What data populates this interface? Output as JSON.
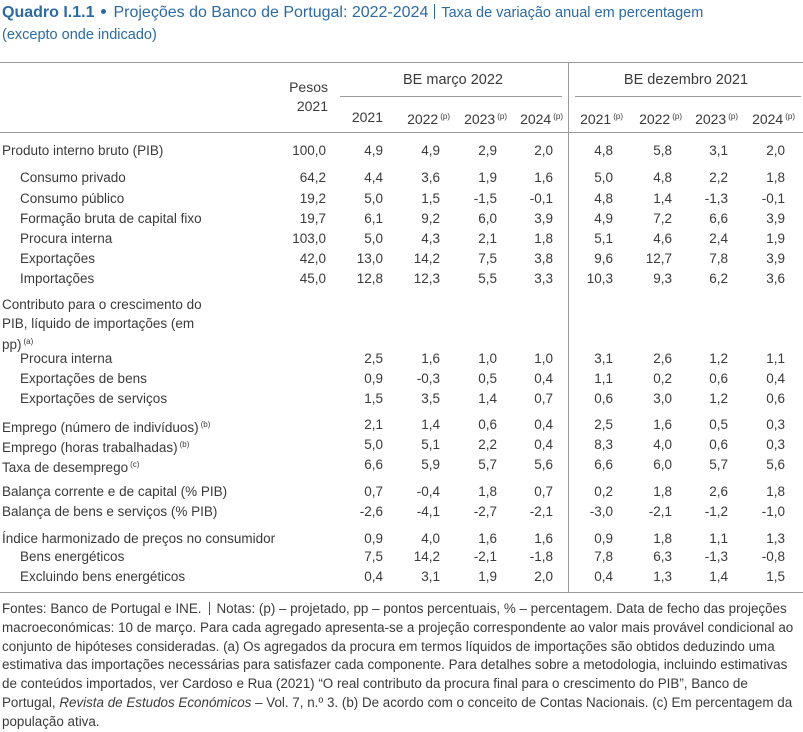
{
  "header": {
    "label": "Quadro I.1.1",
    "title": "Projeções do Banco de Portugal: 2022-2024",
    "subtitle": "Taxa de variação anual em percentagem (excepto onde indicado)"
  },
  "table": {
    "weight_header": "Pesos 2021",
    "groups": [
      {
        "label": "BE março 2022",
        "years": [
          {
            "year": "2021"
          },
          {
            "year": "2022",
            "note": "(p)"
          },
          {
            "year": "2023",
            "note": "(p)"
          },
          {
            "year": "2024",
            "note": "(p)"
          }
        ]
      },
      {
        "label": "BE dezembro 2021",
        "years": [
          {
            "year": "2021",
            "note": "(p)"
          },
          {
            "year": "2022",
            "note": "(p)"
          },
          {
            "year": "2023",
            "note": "(p)"
          },
          {
            "year": "2024",
            "note": "(p)"
          }
        ]
      }
    ],
    "sections": [
      {
        "rows": [
          {
            "label": "Produto interno bruto (PIB)",
            "weight": "100,0",
            "values": [
              "4,9",
              "4,9",
              "2,9",
              "2,0",
              "4,8",
              "5,8",
              "3,1",
              "2,0"
            ]
          },
          {
            "label": "Consumo privado",
            "indent": true,
            "weight": "64,2",
            "values": [
              "4,4",
              "3,6",
              "1,9",
              "1,6",
              "5,0",
              "4,8",
              "2,2",
              "1,8"
            ]
          },
          {
            "label": "Consumo público",
            "indent": true,
            "weight": "19,2",
            "values": [
              "5,0",
              "1,5",
              "-1,5",
              "-0,1",
              "4,8",
              "1,4",
              "-1,3",
              "-0,1"
            ]
          },
          {
            "label": "Formação bruta de capital fixo",
            "indent": true,
            "weight": "19,7",
            "values": [
              "6,1",
              "9,2",
              "6,0",
              "3,9",
              "4,9",
              "7,2",
              "6,6",
              "3,9"
            ]
          },
          {
            "label": "Procura interna",
            "indent": true,
            "weight": "103,0",
            "values": [
              "5,0",
              "4,3",
              "2,1",
              "1,8",
              "5,1",
              "4,6",
              "2,4",
              "1,9"
            ]
          },
          {
            "label": "Exportações",
            "indent": true,
            "weight": "42,0",
            "values": [
              "13,0",
              "14,2",
              "7,5",
              "3,8",
              "9,6",
              "12,7",
              "7,8",
              "3,9"
            ]
          },
          {
            "label": "Importações",
            "indent": true,
            "weight": "45,0",
            "values": [
              "12,8",
              "12,3",
              "5,5",
              "3,3",
              "10,3",
              "9,3",
              "6,2",
              "3,6"
            ]
          }
        ]
      },
      {
        "heading": "Contributo para o crescimento do PIB, líquido de importações (em pp)",
        "heading_note": "(a)",
        "rows": [
          {
            "label": "Procura interna",
            "indent": true,
            "values": [
              "2,5",
              "1,6",
              "1,0",
              "1,0",
              "3,1",
              "2,6",
              "1,2",
              "1,1"
            ]
          },
          {
            "label": "Exportações de bens",
            "indent": true,
            "values": [
              "0,9",
              "-0,3",
              "0,5",
              "0,4",
              "1,1",
              "0,2",
              "0,6",
              "0,4"
            ]
          },
          {
            "label": "Exportações de serviços",
            "indent": true,
            "values": [
              "1,5",
              "3,5",
              "1,4",
              "0,7",
              "0,6",
              "3,0",
              "1,2",
              "0,6"
            ]
          }
        ]
      },
      {
        "rows": [
          {
            "label": "Emprego (número de indivíduos)",
            "note": "(b)",
            "values": [
              "2,1",
              "1,4",
              "0,6",
              "0,4",
              "2,5",
              "1,6",
              "0,5",
              "0,3"
            ]
          },
          {
            "label": "Emprego (horas trabalhadas)",
            "note": "(b)",
            "values": [
              "5,0",
              "5,1",
              "2,2",
              "0,4",
              "8,3",
              "4,0",
              "0,6",
              "0,3"
            ]
          },
          {
            "label": "Taxa de desemprego",
            "note": "(c)",
            "values": [
              "6,6",
              "5,9",
              "5,7",
              "5,6",
              "6,6",
              "6,0",
              "5,7",
              "5,6"
            ]
          }
        ]
      },
      {
        "rows": [
          {
            "label": "Balança corrente e de capital (% PIB)",
            "values": [
              "0,7",
              "-0,4",
              "1,8",
              "0,7",
              "0,2",
              "1,8",
              "2,6",
              "1,8"
            ]
          },
          {
            "label": "Balança de bens e serviços (% PIB)",
            "values": [
              "-2,6",
              "-4,1",
              "-2,7",
              "-2,1",
              "-3,0",
              "-2,1",
              "-1,2",
              "-1,0"
            ]
          }
        ]
      },
      {
        "rows": [
          {
            "label": "Índice harmonizado de preços no consumidor",
            "values": [
              "0,9",
              "4,0",
              "1,6",
              "1,6",
              "0,9",
              "1,8",
              "1,1",
              "1,3"
            ]
          },
          {
            "label": "Bens energéticos",
            "indent": true,
            "values": [
              "7,5",
              "14,2",
              "-2,1",
              "-1,8",
              "7,8",
              "6,3",
              "-1,3",
              "-0,8"
            ]
          },
          {
            "label": "Excluindo bens energéticos",
            "indent": true,
            "values": [
              "0,4",
              "3,1",
              "1,9",
              "2,0",
              "0,4",
              "1,3",
              "1,4",
              "1,5"
            ]
          }
        ]
      }
    ]
  },
  "footer": {
    "sources": "Fontes: Banco de Portugal e INE.",
    "notes_before": "Notas: (p) – projetado, pp – pontos percentuais, % – percentagem. Data de fecho das projeções macroeconómicas: 10 de março. Para cada agregado apresenta-se a projeção correspondente ao valor mais provável condicional ao conjunto de hipóteses consideradas. (a) Os agregados da procura em termos líquidos de importações são obtidos deduzindo uma estimativa das importações necessárias para satisfazer cada componente. Para detalhes sobre a metodologia, incluindo estimativas de conteúdos importados, ver Cardoso e Rua (2021) “O real contributo da procura final para o crescimento do PIB”, Banco de Portugal, ",
    "journal": "Revista de Estudos Económicos",
    "notes_after": " – Vol. 7, n.º 3. (b) De acordo com o conceito de Contas Nacionais. (c) Em percentagem da população ativa."
  }
}
